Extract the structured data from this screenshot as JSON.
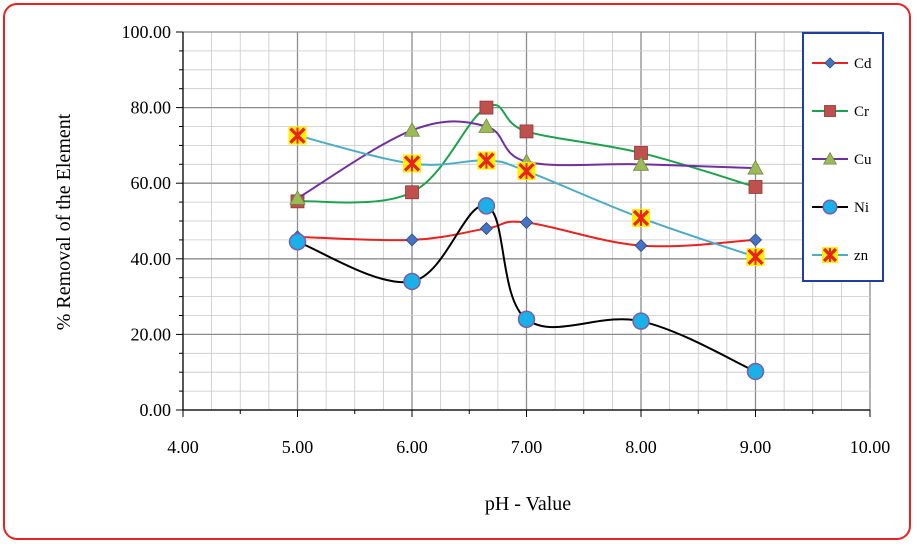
{
  "chart_data": {
    "type": "line",
    "title": "",
    "xlabel": "pH - Value",
    "ylabel": "% Removal of the Element",
    "xlim": [
      4,
      10
    ],
    "ylim": [
      0,
      100
    ],
    "x_ticks": [
      "4.00",
      "5.00",
      "6.00",
      "7.00",
      "8.00",
      "9.00",
      "10.00"
    ],
    "y_ticks": [
      "0.00",
      "20.00",
      "40.00",
      "60.00",
      "80.00",
      "100.00"
    ],
    "grid": true,
    "legend_position": "right",
    "series": [
      {
        "name": "Cd",
        "color": "#e8231f",
        "marker": "diamond",
        "marker_color": "#4472c4",
        "x": [
          5.0,
          6.0,
          6.65,
          7.0,
          8.0,
          9.0
        ],
        "y": [
          45.8,
          45.0,
          48.0,
          49.6,
          43.5,
          45.0
        ]
      },
      {
        "name": "Cr",
        "color": "#1aa34a",
        "marker": "square",
        "marker_color": "#c0504d",
        "x": [
          5.0,
          6.0,
          6.65,
          7.0,
          8.0,
          9.0
        ],
        "y": [
          55.2,
          57.6,
          80.0,
          73.7,
          68.0,
          59.0
        ]
      },
      {
        "name": "Cu",
        "color": "#7030a0",
        "marker": "triangle",
        "marker_color": "#9bbb59",
        "x": [
          5.0,
          6.0,
          6.65,
          7.0,
          8.0,
          9.0
        ],
        "y": [
          56.0,
          74.0,
          75.0,
          65.7,
          65.0,
          64.0
        ]
      },
      {
        "name": "Ni",
        "color": "#000000",
        "marker": "circle",
        "marker_color": "#1ab0e8",
        "x": [
          5.0,
          6.0,
          6.65,
          7.0,
          8.0,
          9.0
        ],
        "y": [
          44.5,
          34.0,
          54.0,
          24.0,
          23.5,
          10.2
        ]
      },
      {
        "name": "zn",
        "color": "#4bacc6",
        "marker": "star",
        "marker_color": "#e8231f",
        "x": [
          5.0,
          6.0,
          6.65,
          7.0,
          8.0,
          9.0
        ],
        "y": [
          72.6,
          65.2,
          66.0,
          63.2,
          50.8,
          40.5
        ]
      }
    ]
  }
}
